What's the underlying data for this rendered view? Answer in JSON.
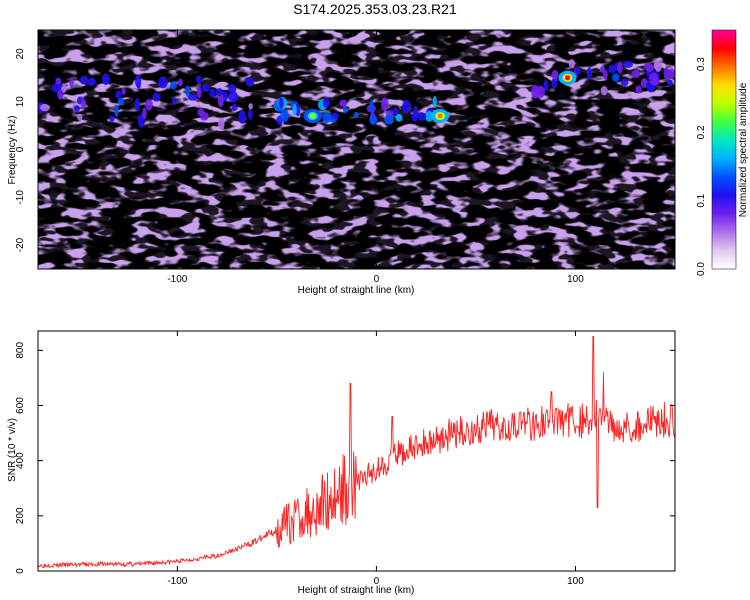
{
  "title": "S174.2025.353.03.23.R21",
  "chart_data": [
    {
      "type": "heatmap",
      "xlabel": "Height of straight line (km)",
      "ylabel": "Frequency (Hz)",
      "xlim": [
        -170,
        150
      ],
      "ylim": [
        -25,
        25
      ],
      "xticks": [
        -100,
        0,
        100
      ],
      "yticks": [
        -20,
        -10,
        0,
        10,
        20
      ],
      "colorbar": {
        "label": "Normalized spectral amplitude",
        "range": [
          0,
          0.35
        ],
        "ticks": [
          "0.0",
          "0.1",
          "0.2",
          "0.3"
        ],
        "colormap": [
          "#ffffff",
          "#e0c8f0",
          "#b070e8",
          "#7020f0",
          "#2010f0",
          "#0050ff",
          "#00b0ff",
          "#00e8c0",
          "#40ff40",
          "#c0ff00",
          "#ffe000",
          "#ff7000",
          "#ff0000",
          "#ff00a0"
        ]
      },
      "features": [
        {
          "x_range": [
            -170,
            -60
          ],
          "freq_hz": [
            5,
            15
          ],
          "amplitude": 0.12
        },
        {
          "x_range": [
            -50,
            30
          ],
          "freq_hz": [
            6,
            10
          ],
          "amplitude": 0.15
        },
        {
          "x": -32,
          "freq_hz": 7,
          "amplitude": 0.25
        },
        {
          "x": 32,
          "freq_hz": 7,
          "amplitude": 0.3
        },
        {
          "x_range": [
            75,
            150
          ],
          "freq_hz": [
            12,
            18
          ],
          "amplitude": 0.12
        },
        {
          "x": 96,
          "freq_hz": 15,
          "amplitude": 0.32
        }
      ]
    },
    {
      "type": "line",
      "xlabel": "Height of straight line (km)",
      "ylabel": "SNR (10 * v/v)",
      "xlim": [
        -170,
        150
      ],
      "ylim": [
        0,
        870
      ],
      "xticks": [
        -100,
        0,
        100
      ],
      "yticks": [
        0,
        200,
        400,
        600,
        800
      ],
      "color": "#ff2020",
      "x": [
        -170,
        -140,
        -120,
        -100,
        -90,
        -80,
        -70,
        -60,
        -50,
        -40,
        -30,
        -20,
        -10,
        0,
        10,
        20,
        30,
        40,
        50,
        60,
        70,
        80,
        90,
        100,
        105,
        110,
        115,
        120,
        130,
        140,
        150
      ],
      "y": [
        20,
        25,
        25,
        35,
        45,
        55,
        80,
        110,
        150,
        190,
        230,
        280,
        320,
        370,
        420,
        450,
        480,
        500,
        510,
        530,
        540,
        535,
        545,
        550,
        540,
        560,
        550,
        530,
        520,
        550,
        545
      ],
      "spikes": [
        {
          "x": 109,
          "y": 850
        },
        {
          "x": 111,
          "y": 230
        },
        {
          "x": 114,
          "y": 720
        },
        {
          "x": 88,
          "y": 650
        },
        {
          "x": -13,
          "y": 680
        },
        {
          "x": 8,
          "y": 560
        }
      ]
    }
  ]
}
